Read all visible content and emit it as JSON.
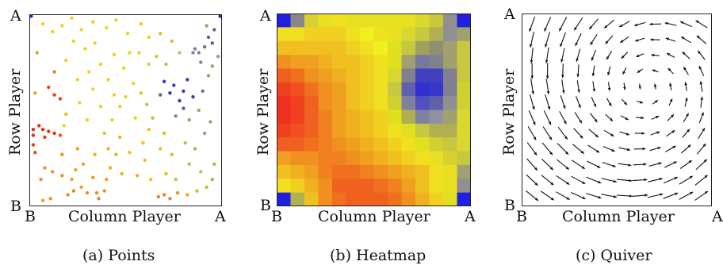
{
  "chart_data": [
    {
      "type": "scatter",
      "caption": "(a) Points",
      "xlabel": "Column Player",
      "ylabel": "Row Player",
      "x_ticks": [
        "B",
        "A"
      ],
      "y_ticks": [
        "A",
        "B"
      ],
      "xlim": [
        0,
        1
      ],
      "ylim": [
        0,
        1
      ],
      "points": [
        [
          0.01,
          0.99,
          "#2a2ad0"
        ],
        [
          0.99,
          0.99,
          "#2a2ad0"
        ],
        [
          0.04,
          0.8,
          "#f0a020"
        ],
        [
          0.03,
          0.59,
          "#e8a020"
        ],
        [
          0.05,
          0.42,
          "#e83010"
        ],
        [
          0.02,
          0.4,
          "#e83010"
        ],
        [
          0.02,
          0.37,
          "#e83010"
        ],
        [
          0.07,
          0.4,
          "#e83010"
        ],
        [
          0.1,
          0.39,
          "#e83010"
        ],
        [
          0.13,
          0.38,
          "#e83010"
        ],
        [
          0.16,
          0.37,
          "#ee5010"
        ],
        [
          0.08,
          0.36,
          "#e84010"
        ],
        [
          0.02,
          0.32,
          "#e84010"
        ],
        [
          0.03,
          0.28,
          "#e85010"
        ],
        [
          0.1,
          0.62,
          "#e84010"
        ],
        [
          0.13,
          0.58,
          "#e84010"
        ],
        [
          0.16,
          0.56,
          "#e84010"
        ],
        [
          0.13,
          0.7,
          "#f08020"
        ],
        [
          0.19,
          0.48,
          "#f0c020"
        ],
        [
          0.18,
          0.42,
          "#f0d020"
        ],
        [
          0.08,
          0.2,
          "#f09020"
        ],
        [
          0.12,
          0.18,
          "#f09020"
        ],
        [
          0.06,
          0.14,
          "#f09020"
        ],
        [
          0.17,
          0.16,
          "#f09020"
        ],
        [
          0.24,
          0.19,
          "#f0a020"
        ],
        [
          0.22,
          0.14,
          "#f0a020"
        ],
        [
          0.27,
          0.1,
          "#f0a020"
        ],
        [
          0.3,
          0.07,
          "#f09020"
        ],
        [
          0.23,
          0.08,
          "#f08020"
        ],
        [
          0.2,
          0.06,
          "#f08020"
        ],
        [
          0.11,
          0.04,
          "#f09020"
        ],
        [
          0.07,
          0.03,
          "#f0a020"
        ],
        [
          0.35,
          0.07,
          "#f09020"
        ],
        [
          0.36,
          0.04,
          "#f08020"
        ],
        [
          0.39,
          0.08,
          "#f09020"
        ],
        [
          0.4,
          0.14,
          "#f0a020"
        ],
        [
          0.33,
          0.15,
          "#f0a020"
        ],
        [
          0.28,
          0.22,
          "#f0a020"
        ],
        [
          0.34,
          0.27,
          "#f0b020"
        ],
        [
          0.42,
          0.2,
          "#f0b020"
        ],
        [
          0.48,
          0.17,
          "#f0b020"
        ],
        [
          0.56,
          0.16,
          "#f0b020"
        ],
        [
          0.63,
          0.14,
          "#f0c020"
        ],
        [
          0.67,
          0.05,
          "#f08020"
        ],
        [
          0.7,
          0.06,
          "#f08020"
        ],
        [
          0.73,
          0.04,
          "#f08020"
        ],
        [
          0.77,
          0.07,
          "#f09020"
        ],
        [
          0.82,
          0.06,
          "#f0a020"
        ],
        [
          0.87,
          0.08,
          "#c0c040"
        ],
        [
          0.92,
          0.1,
          "#c0c040"
        ],
        [
          0.95,
          0.14,
          "#b0b050"
        ],
        [
          0.96,
          0.22,
          "#b0b050"
        ],
        [
          0.89,
          0.18,
          "#c0c040"
        ],
        [
          0.83,
          0.22,
          "#c0c040"
        ],
        [
          0.81,
          0.33,
          "#c0c040"
        ],
        [
          0.74,
          0.27,
          "#d0c030"
        ],
        [
          0.68,
          0.3,
          "#e0c020"
        ],
        [
          0.7,
          0.38,
          "#e0c020"
        ],
        [
          0.62,
          0.4,
          "#f0c020"
        ],
        [
          0.59,
          0.33,
          "#f0c020"
        ],
        [
          0.52,
          0.28,
          "#f0c020"
        ],
        [
          0.47,
          0.36,
          "#f0b020"
        ],
        [
          0.39,
          0.38,
          "#f0c020"
        ],
        [
          0.43,
          0.45,
          "#f0d020"
        ],
        [
          0.47,
          0.52,
          "#f0d020"
        ],
        [
          0.5,
          0.57,
          "#f0d020"
        ],
        [
          0.44,
          0.58,
          "#f0d020"
        ],
        [
          0.37,
          0.52,
          "#f0d020"
        ],
        [
          0.3,
          0.45,
          "#f0d020"
        ],
        [
          0.26,
          0.54,
          "#f0d020"
        ],
        [
          0.25,
          0.66,
          "#f0d020"
        ],
        [
          0.31,
          0.7,
          "#f0d020"
        ],
        [
          0.37,
          0.74,
          "#f0d020"
        ],
        [
          0.44,
          0.79,
          "#f0d020"
        ],
        [
          0.49,
          0.72,
          "#f0d020"
        ],
        [
          0.54,
          0.64,
          "#e8d020"
        ],
        [
          0.58,
          0.59,
          "#d8d020"
        ],
        [
          0.61,
          0.53,
          "#d0c040"
        ],
        [
          0.64,
          0.46,
          "#c0c040"
        ],
        [
          0.68,
          0.58,
          "#6060a0"
        ],
        [
          0.7,
          0.65,
          "#3a3ac0"
        ],
        [
          0.73,
          0.59,
          "#3a3ac0"
        ],
        [
          0.75,
          0.63,
          "#3a3ac0"
        ],
        [
          0.78,
          0.55,
          "#3a3ac0"
        ],
        [
          0.8,
          0.6,
          "#3a3ac0"
        ],
        [
          0.82,
          0.66,
          "#3a3ac0"
        ],
        [
          0.85,
          0.57,
          "#3a3ac0"
        ],
        [
          0.8,
          0.51,
          "#6060a0"
        ],
        [
          0.76,
          0.47,
          "#8080a0"
        ],
        [
          0.83,
          0.45,
          "#a0a070"
        ],
        [
          0.88,
          0.5,
          "#a0a070"
        ],
        [
          0.9,
          0.6,
          "#7070a0"
        ],
        [
          0.93,
          0.68,
          "#a0a070"
        ],
        [
          0.95,
          0.73,
          "#a0a070"
        ],
        [
          0.89,
          0.75,
          "#8080a0"
        ],
        [
          0.85,
          0.8,
          "#8080a0"
        ],
        [
          0.86,
          0.82,
          "#8080a0"
        ],
        [
          0.88,
          0.8,
          "#8080a0"
        ],
        [
          0.91,
          0.83,
          "#7070a0"
        ],
        [
          0.96,
          0.92,
          "#606080"
        ],
        [
          0.93,
          0.88,
          "#606080"
        ],
        [
          0.95,
          0.85,
          "#606080"
        ],
        [
          0.92,
          0.94,
          "#a0a070"
        ],
        [
          0.98,
          0.78,
          "#a0a070"
        ],
        [
          0.78,
          0.8,
          "#c0c040"
        ],
        [
          0.74,
          0.86,
          "#d0c030"
        ],
        [
          0.68,
          0.9,
          "#e0c020"
        ],
        [
          0.62,
          0.88,
          "#f0d020"
        ],
        [
          0.58,
          0.95,
          "#f0d020"
        ],
        [
          0.51,
          0.9,
          "#f0d020"
        ],
        [
          0.45,
          0.97,
          "#f0d020"
        ],
        [
          0.4,
          0.93,
          "#f0d020"
        ],
        [
          0.33,
          0.96,
          "#f0d020"
        ],
        [
          0.27,
          0.92,
          "#f0d020"
        ],
        [
          0.22,
          0.98,
          "#f0d020"
        ],
        [
          0.17,
          0.94,
          "#f0d020"
        ],
        [
          0.12,
          0.91,
          "#f0d020"
        ],
        [
          0.07,
          0.95,
          "#f0d020"
        ],
        [
          0.23,
          0.86,
          "#f0d020"
        ],
        [
          0.29,
          0.82,
          "#f0d020"
        ],
        [
          0.34,
          0.85,
          "#f0d020"
        ],
        [
          0.19,
          0.76,
          "#f0d020"
        ],
        [
          0.57,
          0.8,
          "#f0d020"
        ],
        [
          0.62,
          0.74,
          "#e8d020"
        ],
        [
          0.66,
          0.78,
          "#d8d020"
        ],
        [
          0.71,
          0.74,
          "#c8c040"
        ],
        [
          0.55,
          0.46,
          "#f0d020"
        ],
        [
          0.33,
          0.61,
          "#f0d020"
        ],
        [
          0.41,
          0.66,
          "#f0d020"
        ],
        [
          0.52,
          0.8,
          "#f0d020"
        ],
        [
          0.6,
          0.24,
          "#f0c020"
        ],
        [
          0.45,
          0.27,
          "#f0b020"
        ],
        [
          0.71,
          0.17,
          "#e0c020"
        ],
        [
          0.76,
          0.14,
          "#d0c030"
        ],
        [
          0.86,
          0.3,
          "#b0b050"
        ],
        [
          0.91,
          0.38,
          "#a0a070"
        ],
        [
          0.94,
          0.44,
          "#a0a070"
        ],
        [
          0.25,
          0.3,
          "#f0a020"
        ],
        [
          0.17,
          0.27,
          "#f09020"
        ],
        [
          0.41,
          0.3,
          "#f0b020"
        ]
      ]
    },
    {
      "type": "heatmap",
      "caption": "(b) Heatmap",
      "xlabel": "Column Player",
      "ylabel": "Row Player",
      "x_ticks": [
        "B",
        "A"
      ],
      "y_ticks": [
        "A",
        "B"
      ],
      "grid": [
        [
          "#2020e0",
          "#888888",
          "#d8d030",
          "#e8e020",
          "#f0e020",
          "#e8e020",
          "#e8e020",
          "#e8e020",
          "#e8e020",
          "#e8e020",
          "#d8d830",
          "#c8c838",
          "#909090",
          "#2020e0"
        ],
        [
          "#f0e020",
          "#f0e020",
          "#f0d020",
          "#f0d020",
          "#f0d020",
          "#f0e020",
          "#f0f020",
          "#f0e020",
          "#e8e020",
          "#d8d830",
          "#c8c840",
          "#b0b050",
          "#909090",
          "#a0a070"
        ],
        [
          "#f0c020",
          "#f0c020",
          "#f0c020",
          "#f0c020",
          "#f0c020",
          "#f0d020",
          "#f0e020",
          "#f0f020",
          "#e0e020",
          "#c8c840",
          "#a0a060",
          "#909070",
          "#a0a070",
          "#c8c840"
        ],
        [
          "#f09020",
          "#f0a020",
          "#f0a020",
          "#f0b020",
          "#f0c020",
          "#f0c020",
          "#f0d020",
          "#f0e020",
          "#e0e020",
          "#a0a070",
          "#7878a0",
          "#808090",
          "#a0a070",
          "#c8c840"
        ],
        [
          "#f06020",
          "#f07020",
          "#f09020",
          "#f0a020",
          "#f0b020",
          "#f0c020",
          "#f0d020",
          "#f0e020",
          "#d8d830",
          "#808090",
          "#4040c0",
          "#4040c0",
          "#808090",
          "#c8c840"
        ],
        [
          "#f04020",
          "#f05020",
          "#f07020",
          "#f09020",
          "#f0a020",
          "#f0c020",
          "#f0d020",
          "#f0e020",
          "#c8c840",
          "#6060b0",
          "#3030d0",
          "#3838c8",
          "#808090",
          "#d0d030"
        ],
        [
          "#f03020",
          "#f04020",
          "#f06020",
          "#f09020",
          "#f0a020",
          "#f0c020",
          "#f0d020",
          "#f0e020",
          "#d0d030",
          "#8080a0",
          "#5050c0",
          "#6060a8",
          "#909090",
          "#d0d030"
        ],
        [
          "#f03020",
          "#f04020",
          "#f06020",
          "#f08020",
          "#f0a020",
          "#f0b020",
          "#f0c020",
          "#f0d020",
          "#e0e020",
          "#b0b050",
          "#8080a0",
          "#9090a0",
          "#a0a070",
          "#d8d830"
        ],
        [
          "#f04020",
          "#f05020",
          "#f06020",
          "#f08020",
          "#f0a020",
          "#f0b020",
          "#f0c020",
          "#f0d020",
          "#f0e020",
          "#e0e020",
          "#c8c840",
          "#b0b050",
          "#b0b050",
          "#d8d830"
        ],
        [
          "#f06020",
          "#f06020",
          "#f07020",
          "#f08020",
          "#f09020",
          "#f0a020",
          "#f0b020",
          "#f0c020",
          "#f0d020",
          "#f0e020",
          "#e0e020",
          "#d0d030",
          "#c8c840",
          "#d8d830"
        ],
        [
          "#f0a020",
          "#f09020",
          "#f09020",
          "#f08020",
          "#f08020",
          "#f09020",
          "#f0a020",
          "#f0b020",
          "#f0c020",
          "#f0d020",
          "#f0e020",
          "#e8e020",
          "#d8d030",
          "#c8c840"
        ],
        [
          "#f0c020",
          "#f0b020",
          "#f0a020",
          "#f08020",
          "#f07020",
          "#f07020",
          "#f08020",
          "#f09020",
          "#f0a020",
          "#f0b020",
          "#f0c020",
          "#f0e020",
          "#e8e020",
          "#a0a070"
        ],
        [
          "#f0e020",
          "#f0d020",
          "#f0b020",
          "#f09020",
          "#f06020",
          "#f06020",
          "#f06020",
          "#f07020",
          "#f08020",
          "#f0a020",
          "#f0c020",
          "#f0e020",
          "#e8e020",
          "#909090"
        ],
        [
          "#2020e0",
          "#b0b050",
          "#f0c020",
          "#f09020",
          "#f07020",
          "#f06020",
          "#f06020",
          "#f06020",
          "#f07020",
          "#f09020",
          "#f0b020",
          "#f0d020",
          "#e0e020",
          "#2020e0"
        ]
      ]
    },
    {
      "type": "quiver",
      "caption": "(c) Quiver",
      "xlabel": "Column Player",
      "ylabel": "Row Player",
      "x_ticks": [
        "B",
        "A"
      ],
      "y_ticks": [
        "A",
        "B"
      ]
    }
  ]
}
